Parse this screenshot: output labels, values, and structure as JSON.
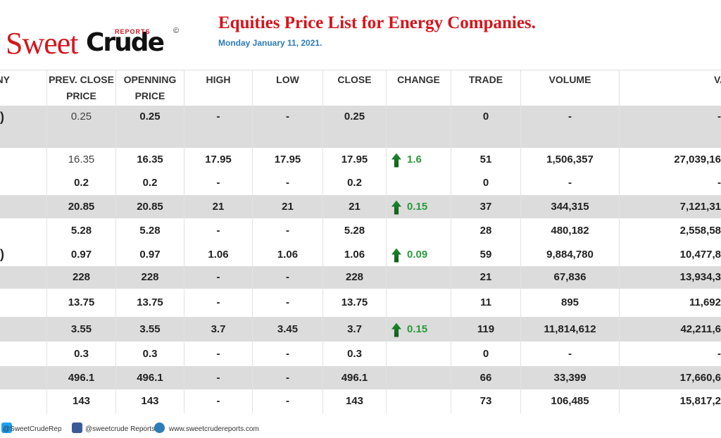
{
  "header": {
    "logo_sweet": "Sweet",
    "logo_crude": "Crude",
    "logo_reports": "REPORTS",
    "copyright": "©",
    "title": "Equities Price List for Energy Companies.",
    "date": "Monday January 11, 2021."
  },
  "table": {
    "columns": [
      "NY",
      "PREV. CLOSE PRICE",
      "OPENNING PRICE",
      "HIGH",
      "LOW",
      "CLOSE",
      "CHANGE",
      "TRADE",
      "VOLUME",
      "VALU"
    ],
    "rows": [
      [
        ")",
        "0.25",
        "0.25",
        "-",
        "-",
        "0.25",
        null,
        "0",
        "-",
        "-"
      ],
      [
        null,
        "16.35",
        "16.35",
        "17.95",
        "17.95",
        "17.95",
        "1.6",
        "51",
        "1,506,357",
        "27,039,16"
      ],
      [
        null,
        "0.2",
        "0.2",
        "-",
        "-",
        "0.2",
        null,
        "0",
        "-",
        "-"
      ],
      [
        null,
        "20.85",
        "20.85",
        "21",
        "21",
        "21",
        "0.15",
        "37",
        "344,315",
        "7,121,31"
      ],
      [
        null,
        "5.28",
        "5.28",
        "-",
        "-",
        "5.28",
        null,
        "28",
        "480,182",
        "2,558,58"
      ],
      [
        ")",
        "0.97",
        "0.97",
        "1.06",
        "1.06",
        "1.06",
        "0.09",
        "59",
        "9,884,780",
        "10,477,8"
      ],
      [
        null,
        "228",
        "228",
        "-",
        "-",
        "228",
        null,
        "21",
        "67,836",
        "13,934,3"
      ],
      [
        null,
        "13.75",
        "13.75",
        "-",
        "-",
        "13.75",
        null,
        "11",
        "895",
        "11,692"
      ],
      [
        null,
        "3.55",
        "3.55",
        "3.7",
        "3.45",
        "3.7",
        "0.15",
        "119",
        "11,814,612",
        "42,211,6"
      ],
      [
        null,
        "0.3",
        "0.3",
        "-",
        "-",
        "0.3",
        null,
        "0",
        "-",
        "-"
      ],
      [
        null,
        "496.1",
        "496.1",
        "-",
        "-",
        "496.1",
        null,
        "66",
        "33,399",
        "17,660,6"
      ],
      [
        null,
        "143",
        "143",
        "-",
        "-",
        "143",
        null,
        "73",
        "106,485",
        "15,817,2"
      ]
    ]
  },
  "footer": {
    "twitter": "@SweetCrudeRep",
    "facebook": "@sweetcrude Reports",
    "website": "www.sweetcrudereports.com"
  }
}
